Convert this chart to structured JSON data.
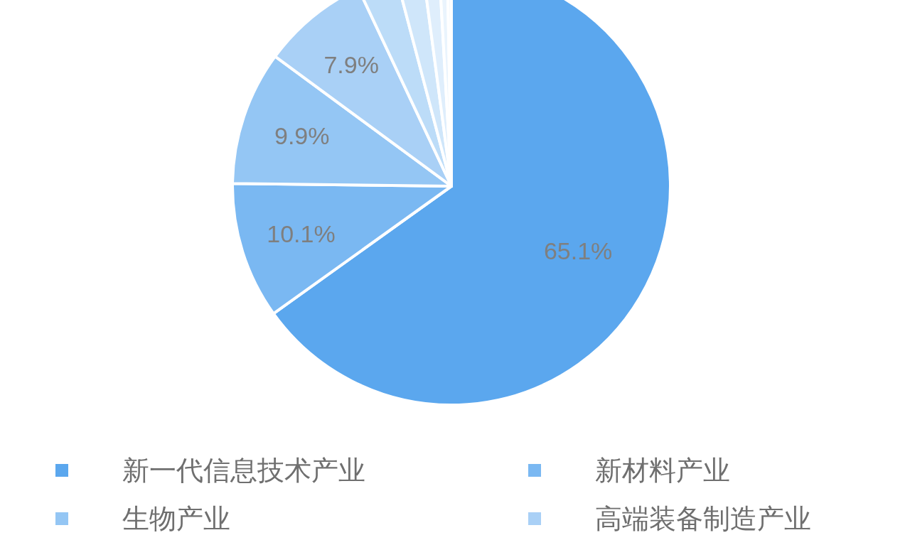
{
  "chart_data": {
    "type": "pie",
    "legend": "bottom",
    "categories": [
      "新一代信息技术产业",
      "新材料产业",
      "生物产业",
      "高端装备制造产业",
      null,
      null,
      null,
      null,
      null
    ],
    "values": [
      65.1,
      10.1,
      9.9,
      7.9,
      2.9,
      2.0,
      1.2,
      0.6,
      0.3
    ],
    "value_labels": [
      "65.1%",
      "10.1%",
      "9.9%",
      "7.9%",
      null,
      null,
      null,
      null,
      null
    ],
    "colors": [
      "#5ba7ee",
      "#7ab8f2",
      "#94c6f4",
      "#a9d0f6",
      "#bcdcf8",
      "#cfe6fa",
      "#dfeefc",
      "#eaf4fd",
      "#f3f8fe"
    ]
  }
}
